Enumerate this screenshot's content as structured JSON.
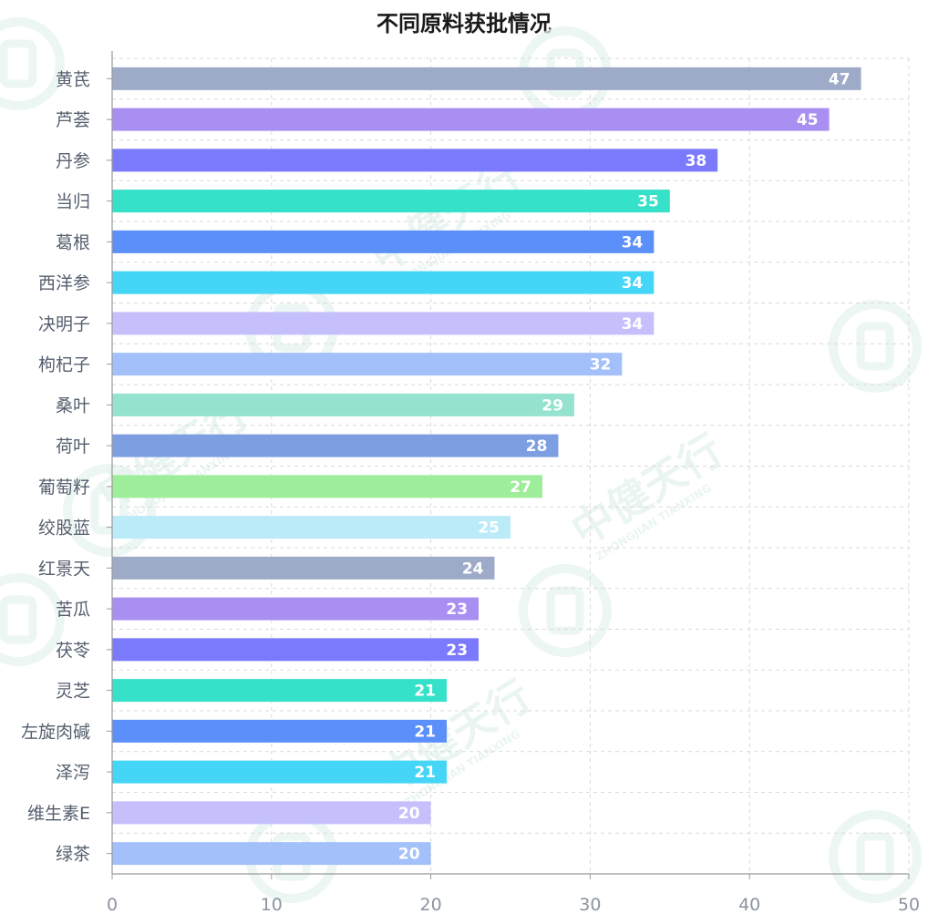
{
  "chart_data": {
    "type": "bar",
    "orientation": "horizontal",
    "title": "不同原料获批情况",
    "categories": [
      "黄芪",
      "芦荟",
      "丹参",
      "当归",
      "葛根",
      "西洋参",
      "决明子",
      "枸杞子",
      "桑叶",
      "荷叶",
      "葡萄籽",
      "绞股蓝",
      "红景天",
      "苦瓜",
      "茯苓",
      "灵芝",
      "左旋肉碱",
      "泽泻",
      "维生素E",
      "绿茶"
    ],
    "values": [
      47,
      45,
      38,
      35,
      34,
      34,
      34,
      32,
      29,
      28,
      27,
      25,
      24,
      23,
      23,
      21,
      21,
      21,
      20,
      20
    ],
    "xlim": [
      0,
      50
    ],
    "xticks": [
      0,
      10,
      20,
      30,
      40,
      50
    ],
    "xlabel": "",
    "ylabel": "",
    "grid": true,
    "data_labels": true
  },
  "colors": {
    "bars": [
      "#9eabc8",
      "#aa8ff2",
      "#7b79fc",
      "#35e1c8",
      "#5b8ffa",
      "#45d6f7",
      "#c5c0fc",
      "#a3c0fb",
      "#95e3cf",
      "#7d9fe2",
      "#9ded9a",
      "#bbeaf8"
    ],
    "label_text": "#ffffff",
    "axis_text": "#555f6e",
    "tick_text": "#8c94a0",
    "grid": "#d9d9d9",
    "axis": "#999999",
    "watermark": "#e6f3ee"
  },
  "watermark": {
    "brand": "中健天行",
    "brand_latin": "ZHONGJIAN TIANXING"
  }
}
